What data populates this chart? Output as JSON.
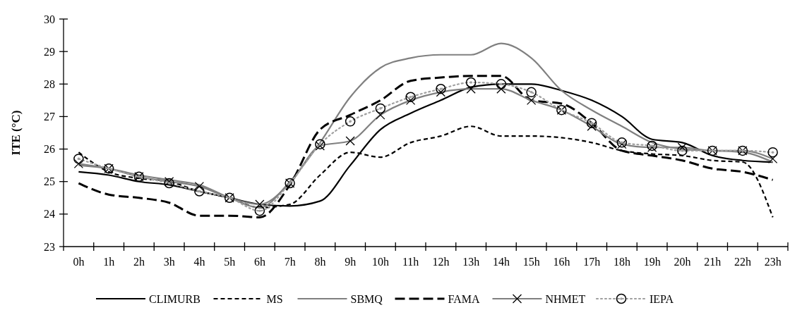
{
  "chart_data": {
    "type": "line",
    "ylabel": "ITE (°C)",
    "categories": [
      "0h",
      "1h",
      "2h",
      "3h",
      "4h",
      "5h",
      "6h",
      "7h",
      "8h",
      "9h",
      "10h",
      "11h",
      "12h",
      "13h",
      "14h",
      "15h",
      "16h",
      "17h",
      "18h",
      "19h",
      "20h",
      "21h",
      "22h",
      "23h"
    ],
    "ylim": [
      23,
      30
    ],
    "yticks": [
      23,
      24,
      25,
      26,
      27,
      28,
      29,
      30
    ],
    "grid": false,
    "legend": "bottom",
    "series": [
      {
        "name": "CLIMURB",
        "color": "#000000",
        "line_style": "solid",
        "marker": "none",
        "values": [
          25.3,
          25.2,
          25.0,
          24.9,
          24.7,
          24.5,
          24.3,
          24.25,
          24.4,
          25.5,
          26.6,
          27.1,
          27.5,
          27.9,
          28.0,
          28.0,
          27.8,
          27.5,
          27.0,
          26.3,
          26.2,
          25.8,
          25.65,
          25.6
        ]
      },
      {
        "name": "MS",
        "color": "#000000",
        "line_style": "dashed",
        "marker": "none",
        "values": [
          25.9,
          25.3,
          25.1,
          25.0,
          24.7,
          24.5,
          24.2,
          24.3,
          25.2,
          25.9,
          25.75,
          26.2,
          26.4,
          26.7,
          26.4,
          26.4,
          26.35,
          26.2,
          25.95,
          25.85,
          25.8,
          25.65,
          25.6,
          23.9
        ]
      },
      {
        "name": "SBMQ",
        "color": "#808080",
        "line_style": "solid",
        "marker": "none",
        "values": [
          25.5,
          25.4,
          25.2,
          25.05,
          24.9,
          24.5,
          24.2,
          25.0,
          26.2,
          27.6,
          28.5,
          28.8,
          28.9,
          28.9,
          29.25,
          28.8,
          27.8,
          27.2,
          26.7,
          26.2,
          26.0,
          25.95,
          25.9,
          25.6
        ]
      },
      {
        "name": "FAMA",
        "color": "#000000",
        "line_style": "dashed",
        "marker": "none",
        "values": [
          24.95,
          24.6,
          24.5,
          24.35,
          23.95,
          23.95,
          23.9,
          24.9,
          26.6,
          27.05,
          27.5,
          28.1,
          28.2,
          28.25,
          28.25,
          27.5,
          27.4,
          26.8,
          25.95,
          25.8,
          25.65,
          25.4,
          25.3,
          25.05
        ]
      },
      {
        "name": "NHMET",
        "color": "#808080",
        "line_style": "solid",
        "marker": "cross",
        "values": [
          25.55,
          25.4,
          25.15,
          25.0,
          24.85,
          24.5,
          24.3,
          24.95,
          26.1,
          26.25,
          27.05,
          27.5,
          27.75,
          27.85,
          27.85,
          27.5,
          27.2,
          26.7,
          26.15,
          26.05,
          26.05,
          25.95,
          25.95,
          25.7
        ]
      },
      {
        "name": "IEPA",
        "color": "#a0a0a0",
        "line_style": "dotted",
        "marker": "circle",
        "values": [
          25.7,
          25.4,
          25.15,
          24.95,
          24.7,
          24.5,
          24.1,
          24.95,
          26.15,
          26.85,
          27.25,
          27.6,
          27.85,
          28.05,
          28.0,
          27.75,
          27.2,
          26.8,
          26.2,
          26.1,
          25.95,
          25.95,
          25.95,
          25.9
        ]
      }
    ]
  }
}
